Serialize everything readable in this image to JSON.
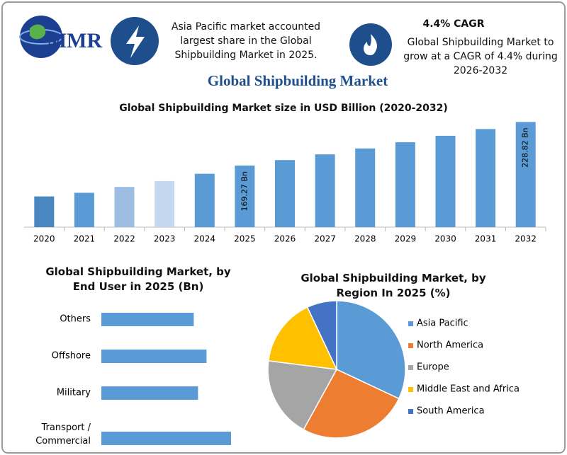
{
  "header": {
    "logo": "MMR",
    "note_1": "Asia Pacific market accounted largest share in the Global Shipbuilding Market in 2025.",
    "note_2_title": "4.4% CAGR",
    "note_2": "Global Shipbuilding Market to grow at a CAGR of 4.4% during 2026-2032",
    "title": "Global Shipbuilding Market"
  },
  "chart_data": [
    {
      "type": "bar",
      "title": "Global Shipbuilding Market size in USD Billion (2020-2032)",
      "categories": [
        "2020",
        "2021",
        "2022",
        "2023",
        "2024",
        "2025",
        "2026",
        "2027",
        "2028",
        "2029",
        "2030",
        "2031",
        "2032"
      ],
      "values": [
        127,
        132,
        140,
        148,
        158,
        169.27,
        176.72,
        184.5,
        192.62,
        201.09,
        209.94,
        219.18,
        228.82
      ],
      "value_labels": [
        null,
        null,
        null,
        null,
        null,
        "169.27 Bn",
        null,
        null,
        null,
        null,
        null,
        null,
        "228.82 Bn"
      ],
      "colors": [
        "#4a86c0",
        "#5b9bd5",
        "#9dbde3",
        "#c5d7ee",
        "#5b9bd5",
        "#5b9bd5",
        "#5b9bd5",
        "#5b9bd5",
        "#5b9bd5",
        "#5b9bd5",
        "#5b9bd5",
        "#5b9bd5",
        "#5b9bd5"
      ],
      "ylim": [
        85,
        235
      ]
    },
    {
      "type": "hbar",
      "title": "Global Shipbuilding Market, by End User in 2025 (Bn)",
      "categories": [
        "Others",
        "Offshore",
        "Military",
        "Transport / Commercial"
      ],
      "values": [
        36.9,
        42.0,
        38.6,
        51.8
      ],
      "color": "#5b9bd5",
      "xlim": [
        0,
        60
      ]
    },
    {
      "type": "pie",
      "title": "Global Shipbuilding Market, by Region In 2025 (%)",
      "categories": [
        "Asia Pacific",
        "North America",
        "Europe",
        "Middle East and Africa",
        "South America"
      ],
      "values": [
        32,
        26,
        19,
        16,
        7
      ],
      "colors": [
        "#5b9bd5",
        "#ed7d31",
        "#a5a5a5",
        "#ffc000",
        "#4472c4"
      ],
      "legend": "right"
    }
  ]
}
